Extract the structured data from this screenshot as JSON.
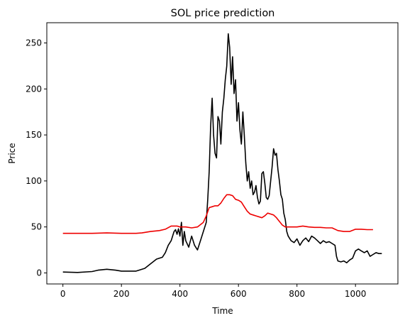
{
  "chart_data": {
    "type": "line",
    "title": "SOL price prediction",
    "xlabel": "Time",
    "ylabel": "Price",
    "xlim": [
      -55,
      1145
    ],
    "ylim": [
      -12,
      272
    ],
    "xticks": [
      0,
      200,
      400,
      600,
      800,
      1000
    ],
    "yticks": [
      0,
      50,
      100,
      150,
      200,
      250
    ],
    "grid": false,
    "legend": "none",
    "series": [
      {
        "color": "#000000",
        "x": [
          0,
          50,
          100,
          120,
          150,
          180,
          200,
          220,
          250,
          260,
          280,
          300,
          320,
          340,
          350,
          360,
          370,
          380,
          385,
          390,
          395,
          400,
          405,
          410,
          415,
          420,
          430,
          440,
          450,
          460,
          470,
          480,
          490,
          495,
          500,
          505,
          510,
          515,
          520,
          525,
          530,
          535,
          540,
          545,
          550,
          555,
          560,
          565,
          570,
          575,
          580,
          585,
          590,
          595,
          600,
          605,
          610,
          615,
          620,
          625,
          630,
          635,
          640,
          645,
          650,
          655,
          660,
          665,
          670,
          675,
          680,
          685,
          690,
          695,
          700,
          705,
          710,
          715,
          720,
          725,
          730,
          735,
          740,
          745,
          750,
          755,
          760,
          765,
          770,
          780,
          790,
          800,
          810,
          820,
          830,
          840,
          850,
          860,
          870,
          880,
          890,
          900,
          910,
          920,
          930,
          935,
          940,
          950,
          960,
          970,
          980,
          990,
          1000,
          1010,
          1020,
          1030,
          1040,
          1050,
          1060,
          1070,
          1080,
          1090
        ],
        "y": [
          1,
          0.5,
          1.5,
          3,
          4,
          3,
          2,
          2,
          2,
          3,
          5,
          10,
          15,
          17,
          22,
          30,
          35,
          45,
          47,
          42,
          48,
          40,
          55,
          30,
          45,
          35,
          28,
          40,
          30,
          25,
          35,
          45,
          55,
          80,
          110,
          160,
          190,
          150,
          130,
          125,
          170,
          165,
          140,
          175,
          190,
          210,
          225,
          260,
          245,
          205,
          235,
          195,
          210,
          165,
          185,
          155,
          140,
          175,
          150,
          120,
          100,
          110,
          92,
          100,
          85,
          88,
          95,
          82,
          75,
          78,
          108,
          110,
          98,
          82,
          80,
          84,
          100,
          115,
          135,
          128,
          130,
          112,
          100,
          85,
          80,
          65,
          58,
          45,
          40,
          35,
          33,
          37,
          30,
          35,
          38,
          34,
          40,
          38,
          35,
          32,
          35,
          33,
          34,
          32,
          30,
          18,
          13,
          12,
          13,
          11,
          14,
          16,
          24,
          26,
          24,
          22,
          24,
          18,
          20,
          22,
          21,
          21
        ]
      },
      {
        "color": "#ee0000",
        "x": [
          0,
          100,
          150,
          200,
          250,
          270,
          300,
          330,
          350,
          370,
          390,
          400,
          420,
          440,
          460,
          480,
          490,
          500,
          510,
          520,
          530,
          540,
          550,
          560,
          570,
          580,
          590,
          600,
          610,
          620,
          630,
          640,
          650,
          660,
          680,
          690,
          700,
          710,
          720,
          730,
          740,
          750,
          760,
          770,
          780,
          800,
          820,
          840,
          860,
          880,
          900,
          920,
          940,
          960,
          980,
          1000,
          1020,
          1040,
          1060
        ],
        "y": [
          43,
          43,
          43.5,
          43,
          43,
          43.5,
          45,
          46,
          47.5,
          51,
          51,
          50,
          50,
          49,
          50,
          55,
          62,
          71,
          72,
          73,
          73,
          76,
          81,
          85,
          85,
          84,
          80,
          79,
          77,
          72,
          67,
          64,
          63,
          62,
          60,
          62,
          65,
          64,
          63,
          60,
          56,
          52,
          50,
          50,
          50,
          50,
          51,
          50,
          49.5,
          49.5,
          49,
          49,
          46,
          45,
          45,
          47.5,
          47.5,
          47,
          47
        ]
      }
    ]
  }
}
